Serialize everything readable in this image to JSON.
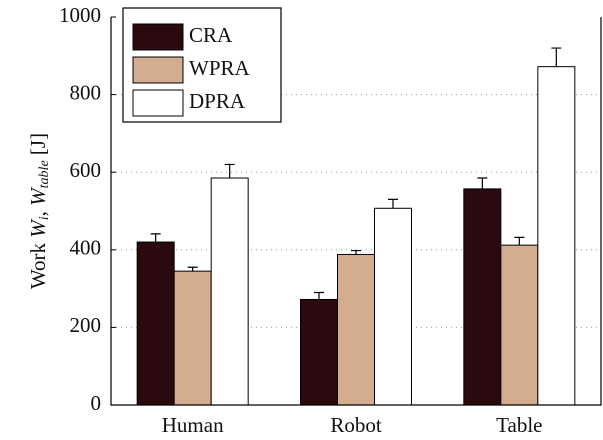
{
  "chart_data": {
    "type": "bar",
    "ylabel": [
      "Work",
      "W",
      "i",
      ",",
      "W",
      "table",
      "[J]"
    ],
    "categories": [
      "Human",
      "Robot",
      "Table"
    ],
    "series": [
      {
        "name": "CRA",
        "color": "#2a0a0e",
        "values": [
          420,
          272,
          557
        ],
        "errors": [
          21,
          18,
          28
        ]
      },
      {
        "name": "WPRA",
        "color": "#d4ad91",
        "values": [
          345,
          388,
          412
        ],
        "errors": [
          10,
          10,
          20
        ]
      },
      {
        "name": "DPRA",
        "color": "#ffffff",
        "values": [
          585,
          507,
          872
        ],
        "errors": [
          35,
          23,
          48
        ]
      }
    ],
    "ylim": [
      0,
      1000
    ],
    "yticks": [
      0,
      200,
      400,
      600,
      800,
      1000
    ],
    "grid": true,
    "legend": "upper left"
  }
}
